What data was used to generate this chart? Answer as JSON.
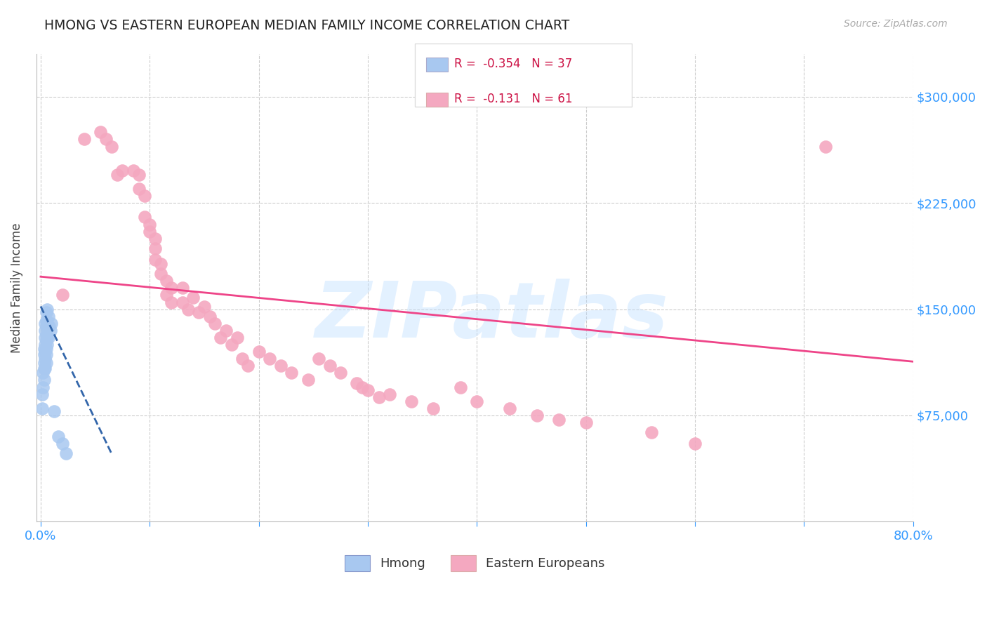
{
  "title": "HMONG VS EASTERN EUROPEAN MEDIAN FAMILY INCOME CORRELATION CHART",
  "source": "Source: ZipAtlas.com",
  "ylabel": "Median Family Income",
  "xlim": [
    -0.004,
    0.8
  ],
  "ylim": [
    0,
    330000
  ],
  "yticks": [
    75000,
    150000,
    225000,
    300000
  ],
  "ytick_labels": [
    "$75,000",
    "$150,000",
    "$225,000",
    "$300,000"
  ],
  "xticks": [
    0.0,
    0.1,
    0.2,
    0.3,
    0.4,
    0.5,
    0.6,
    0.7,
    0.8
  ],
  "hmong_color": "#a8c8f0",
  "eastern_color": "#f4a8c0",
  "hmong_line_color": "#3366aa",
  "eastern_line_color": "#ee4488",
  "legend_R_hmong": "-0.354",
  "legend_N_hmong": "37",
  "legend_R_eastern": "-0.131",
  "legend_N_eastern": "61",
  "watermark": "ZIPatlas",
  "background_color": "#ffffff",
  "grid_color": "#cccccc",
  "title_color": "#222222",
  "axis_label_color": "#444444",
  "ytick_color": "#3399ff",
  "xtick_color": "#3399ff",
  "hmong_x": [
    0.001,
    0.001,
    0.002,
    0.002,
    0.003,
    0.003,
    0.003,
    0.003,
    0.003,
    0.004,
    0.004,
    0.004,
    0.004,
    0.004,
    0.004,
    0.004,
    0.005,
    0.005,
    0.005,
    0.005,
    0.005,
    0.005,
    0.005,
    0.005,
    0.006,
    0.006,
    0.006,
    0.006,
    0.007,
    0.007,
    0.008,
    0.009,
    0.01,
    0.012,
    0.016,
    0.02,
    0.023
  ],
  "hmong_y": [
    80000,
    90000,
    95000,
    105000,
    100000,
    108000,
    112000,
    118000,
    122000,
    108000,
    115000,
    120000,
    125000,
    130000,
    135000,
    140000,
    112000,
    118000,
    122000,
    128000,
    132000,
    138000,
    142000,
    148000,
    125000,
    130000,
    140000,
    150000,
    130000,
    145000,
    138000,
    135000,
    140000,
    78000,
    60000,
    55000,
    48000
  ],
  "eastern_x": [
    0.02,
    0.04,
    0.055,
    0.06,
    0.065,
    0.07,
    0.075,
    0.085,
    0.09,
    0.09,
    0.095,
    0.095,
    0.1,
    0.1,
    0.105,
    0.105,
    0.105,
    0.11,
    0.11,
    0.115,
    0.115,
    0.12,
    0.12,
    0.13,
    0.13,
    0.135,
    0.14,
    0.145,
    0.15,
    0.155,
    0.16,
    0.165,
    0.17,
    0.175,
    0.18,
    0.185,
    0.19,
    0.2,
    0.21,
    0.22,
    0.23,
    0.245,
    0.255,
    0.265,
    0.275,
    0.29,
    0.295,
    0.3,
    0.31,
    0.32,
    0.34,
    0.36,
    0.385,
    0.4,
    0.43,
    0.455,
    0.475,
    0.5,
    0.56,
    0.6,
    0.72
  ],
  "eastern_y": [
    160000,
    270000,
    275000,
    270000,
    265000,
    245000,
    248000,
    248000,
    245000,
    235000,
    230000,
    215000,
    210000,
    205000,
    200000,
    193000,
    185000,
    182000,
    175000,
    170000,
    160000,
    165000,
    155000,
    165000,
    155000,
    150000,
    158000,
    148000,
    152000,
    145000,
    140000,
    130000,
    135000,
    125000,
    130000,
    115000,
    110000,
    120000,
    115000,
    110000,
    105000,
    100000,
    115000,
    110000,
    105000,
    98000,
    95000,
    93000,
    88000,
    90000,
    85000,
    80000,
    95000,
    85000,
    80000,
    75000,
    72000,
    70000,
    63000,
    55000,
    265000
  ],
  "hmong_trendline_x": [
    0.0,
    0.065
  ],
  "hmong_trendline_y": [
    152000,
    48000
  ],
  "eastern_trendline_x": [
    0.0,
    0.8
  ],
  "eastern_trendline_y": [
    173000,
    113000
  ]
}
